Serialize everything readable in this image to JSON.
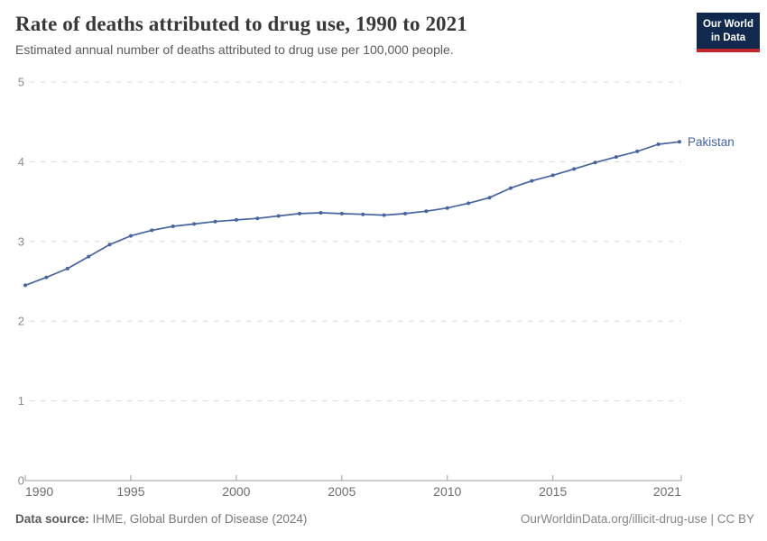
{
  "header": {
    "title": "Rate of deaths attributed to drug use, 1990 to 2021",
    "subtitle": "Estimated annual number of deaths attributed to drug use per 100,000 people.",
    "logo_line1": "Our World",
    "logo_line2": "in Data"
  },
  "chart_data": {
    "type": "line",
    "title": "Rate of deaths attributed to drug use, 1990 to 2021",
    "xlabel": "",
    "ylabel": "",
    "x": [
      1990,
      1991,
      1992,
      1993,
      1994,
      1995,
      1996,
      1997,
      1998,
      1999,
      2000,
      2001,
      2002,
      2003,
      2004,
      2005,
      2006,
      2007,
      2008,
      2009,
      2010,
      2011,
      2012,
      2013,
      2014,
      2015,
      2016,
      2017,
      2018,
      2019,
      2020,
      2021
    ],
    "series": [
      {
        "name": "Pakistan",
        "color": "#4664a0",
        "values": [
          2.45,
          2.55,
          2.66,
          2.81,
          2.96,
          3.07,
          3.14,
          3.19,
          3.22,
          3.25,
          3.27,
          3.29,
          3.32,
          3.35,
          3.36,
          3.35,
          3.34,
          3.33,
          3.35,
          3.38,
          3.42,
          3.48,
          3.55,
          3.67,
          3.76,
          3.83,
          3.91,
          3.99,
          4.06,
          4.13,
          4.22,
          4.25
        ]
      }
    ],
    "xlim": [
      1990,
      2021
    ],
    "ylim": [
      0,
      5
    ],
    "x_ticks": [
      1990,
      1995,
      2000,
      2005,
      2010,
      2015,
      2021
    ],
    "y_ticks": [
      0,
      1,
      2,
      3,
      4,
      5
    ],
    "grid": "horizontal-dashed",
    "legend": "line-end-label"
  },
  "colors": {
    "line": "#4664a0",
    "grid": "#d8d8d8",
    "axis": "#9e9e9e",
    "y_tick_label": "#8c8c8c",
    "x_tick_label": "#6e6e6e",
    "logo_bg": "#12294e",
    "logo_bar": "#c0272d"
  },
  "footer": {
    "source_label": "Data source:",
    "source_text": "IHME, Global Burden of Disease (2024)",
    "link_text": "OurWorldinData.org/illicit-drug-use | CC BY"
  }
}
